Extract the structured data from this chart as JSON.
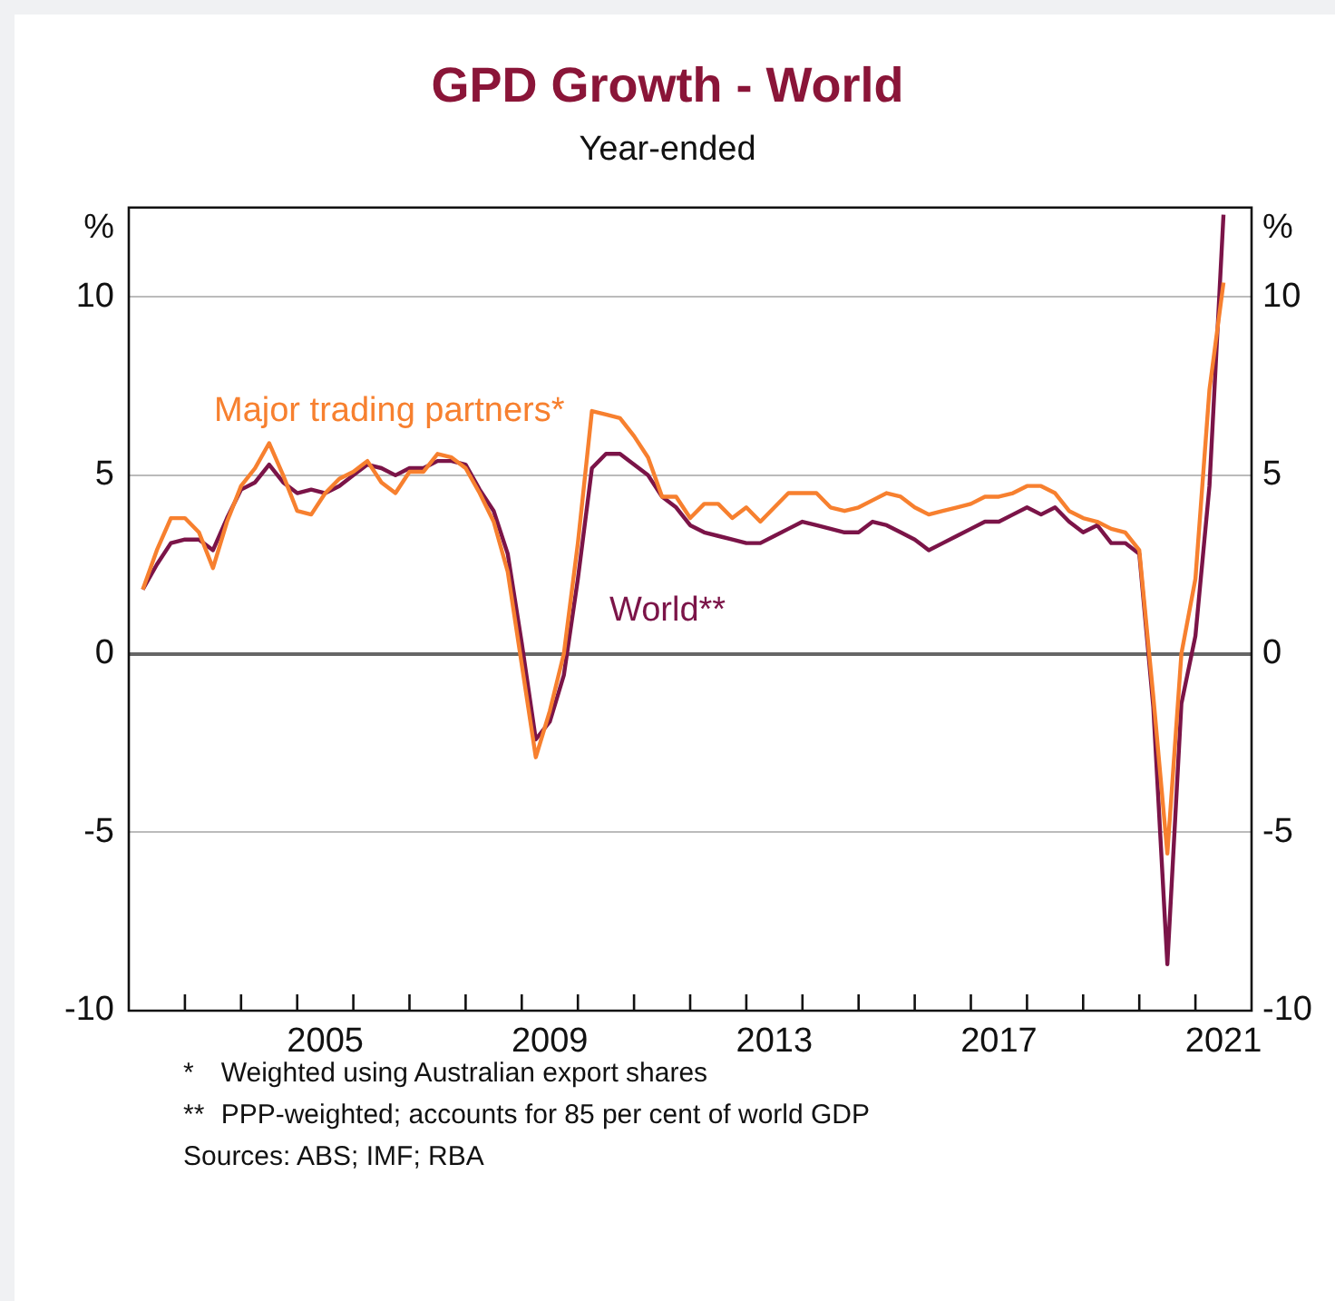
{
  "chart_data": {
    "type": "line",
    "title": "GPD Growth - World",
    "subtitle": "Year-ended",
    "ylabel": "%",
    "y2label": "%",
    "xlim": [
      2002,
      2022
    ],
    "xticks": [
      {
        "value": 2003,
        "label": null
      },
      {
        "value": 2004,
        "label": null
      },
      {
        "value": 2005,
        "label": null
      },
      {
        "value": 2005.5,
        "label": "2005"
      },
      {
        "value": 2006,
        "label": null
      },
      {
        "value": 2007,
        "label": null
      },
      {
        "value": 2008,
        "label": null
      },
      {
        "value": 2009,
        "label": null
      },
      {
        "value": 2009.5,
        "label": "2009"
      },
      {
        "value": 2010,
        "label": null
      },
      {
        "value": 2011,
        "label": null
      },
      {
        "value": 2012,
        "label": null
      },
      {
        "value": 2013,
        "label": null
      },
      {
        "value": 2013.5,
        "label": "2013"
      },
      {
        "value": 2014,
        "label": null
      },
      {
        "value": 2015,
        "label": null
      },
      {
        "value": 2016,
        "label": null
      },
      {
        "value": 2017,
        "label": null
      },
      {
        "value": 2017.5,
        "label": "2017"
      },
      {
        "value": 2018,
        "label": null
      },
      {
        "value": 2019,
        "label": null
      },
      {
        "value": 2020,
        "label": null
      },
      {
        "value": 2021,
        "label": null
      },
      {
        "value": 2021.5,
        "label": "2021"
      }
    ],
    "ylim": [
      -10,
      12.5
    ],
    "yticks": [
      -10,
      -5,
      0,
      5,
      10
    ],
    "y2lim": [
      -10,
      12.5
    ],
    "y2ticks": [
      -10,
      -5,
      0,
      5,
      10
    ],
    "grid": "y",
    "legend": false,
    "marker": "none",
    "line_style": "solid",
    "x": [
      2002.25,
      2002.5,
      2002.75,
      2003,
      2003.25,
      2003.5,
      2003.75,
      2004,
      2004.25,
      2004.5,
      2004.75,
      2005,
      2005.25,
      2005.5,
      2005.75,
      2006,
      2006.25,
      2006.5,
      2006.75,
      2007,
      2007.25,
      2007.5,
      2007.75,
      2008,
      2008.25,
      2008.5,
      2008.75,
      2009,
      2009.25,
      2009.5,
      2009.75,
      2010,
      2010.25,
      2010.5,
      2010.75,
      2011,
      2011.25,
      2011.5,
      2011.75,
      2012,
      2012.25,
      2012.5,
      2012.75,
      2013,
      2013.25,
      2013.5,
      2013.75,
      2014,
      2014.25,
      2014.5,
      2014.75,
      2015,
      2015.25,
      2015.5,
      2015.75,
      2016,
      2016.25,
      2016.5,
      2016.75,
      2017,
      2017.25,
      2017.5,
      2017.75,
      2018,
      2018.25,
      2018.5,
      2018.75,
      2019,
      2019.25,
      2019.5,
      2019.75,
      2020,
      2020.25,
      2020.5,
      2020.75,
      2021,
      2021.25,
      2021.5
    ],
    "series": [
      {
        "name": "Major trading partners*",
        "color": "#f7802f",
        "values": [
          1.8,
          2.9,
          3.8,
          3.8,
          3.4,
          2.4,
          3.7,
          4.7,
          5.2,
          5.9,
          5.0,
          4.0,
          3.9,
          4.5,
          4.9,
          5.1,
          5.4,
          4.8,
          4.5,
          5.1,
          5.1,
          5.6,
          5.5,
          5.2,
          4.5,
          3.7,
          2.3,
          -0.3,
          -2.9,
          -1.6,
          0.0,
          3.1,
          6.8,
          6.7,
          6.6,
          6.1,
          5.5,
          4.4,
          4.4,
          3.8,
          4.2,
          4.2,
          3.8,
          4.1,
          3.7,
          4.1,
          4.5,
          4.5,
          4.5,
          4.1,
          4.0,
          4.1,
          4.3,
          4.5,
          4.4,
          4.1,
          3.9,
          4.0,
          4.1,
          4.2,
          4.4,
          4.4,
          4.5,
          4.7,
          4.7,
          4.5,
          4.0,
          3.8,
          3.7,
          3.5,
          3.4,
          2.9,
          -1.2,
          -5.6,
          0.0,
          2.1,
          7.4,
          10.4
        ]
      },
      {
        "name": "World**",
        "color": "#7b1448",
        "values": [
          1.8,
          2.5,
          3.1,
          3.2,
          3.2,
          2.9,
          3.8,
          4.6,
          4.8,
          5.3,
          4.8,
          4.5,
          4.6,
          4.5,
          4.7,
          5.0,
          5.3,
          5.2,
          5.0,
          5.2,
          5.2,
          5.4,
          5.4,
          5.3,
          4.6,
          4.0,
          2.8,
          0.3,
          -2.4,
          -1.9,
          -0.6,
          2.1,
          5.2,
          5.6,
          5.6,
          5.3,
          5.0,
          4.4,
          4.1,
          3.6,
          3.4,
          3.3,
          3.2,
          3.1,
          3.1,
          3.3,
          3.5,
          3.7,
          3.6,
          3.5,
          3.4,
          3.4,
          3.7,
          3.6,
          3.4,
          3.2,
          2.9,
          3.1,
          3.3,
          3.5,
          3.7,
          3.7,
          3.9,
          4.1,
          3.9,
          4.1,
          3.7,
          3.4,
          3.6,
          3.1,
          3.1,
          2.8,
          -1.5,
          -8.7,
          -1.4,
          0.5,
          4.7,
          12.3
        ]
      }
    ],
    "annotations": [
      "*\tWeighted using Australian export shares",
      "**\tPPP-weighted; accounts for 85 per cent of world GDP",
      "Sources: ABS; IMF; RBA"
    ]
  }
}
